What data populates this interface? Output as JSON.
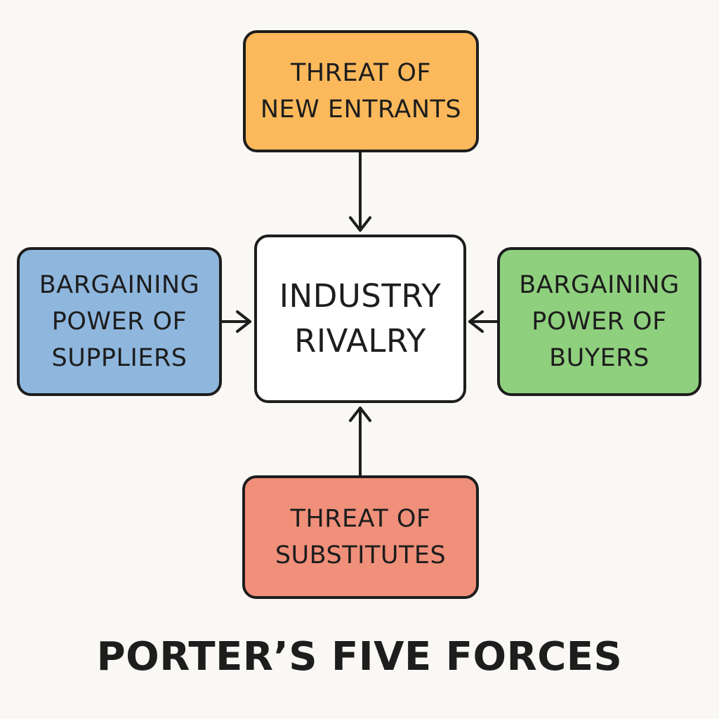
{
  "title": "PORTER’S FIVE FORCES",
  "nodes": {
    "top": {
      "label": "THREAT OF\nNEW ENTRANTS",
      "color": "#fbb95b"
    },
    "left": {
      "label": "BARGAINING\nPOWER OF\nSUPPLIERS",
      "color": "#8fb7de"
    },
    "center": {
      "label": "INDUSTRY\nRIVALRY",
      "color": "#ffffff"
    },
    "right": {
      "label": "BARGAINING\nPOWER OF\nBUYERS",
      "color": "#8fd07e"
    },
    "bottom": {
      "label": "THREAT OF\nSUBSTITUTES",
      "color": "#f0907a"
    }
  },
  "edges": [
    {
      "from": "top",
      "to": "center"
    },
    {
      "from": "left",
      "to": "center"
    },
    {
      "from": "right",
      "to": "center"
    },
    {
      "from": "bottom",
      "to": "center"
    }
  ],
  "line_color": "#1d1d1d"
}
